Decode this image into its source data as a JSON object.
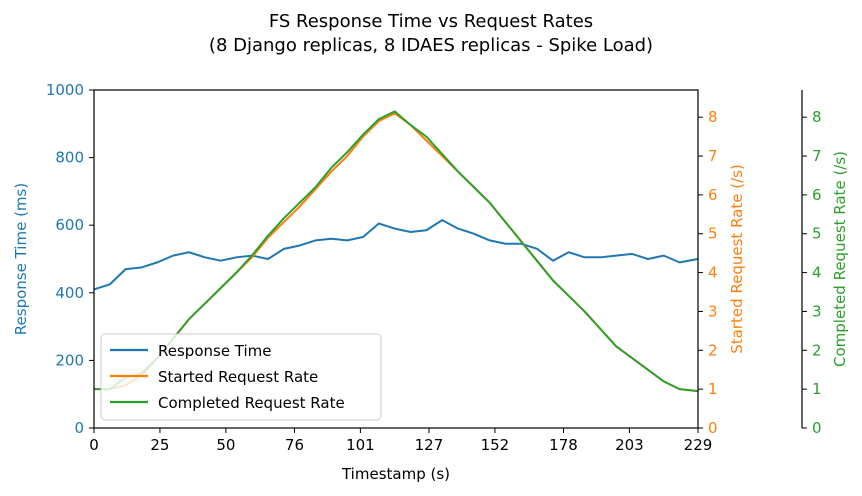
{
  "chart_data": {
    "type": "line",
    "title": "FS Response Time vs Request Rates",
    "subtitle": "(8 Django replicas, 8 IDAES replicas - Spike Load)",
    "xlabel": "Timestamp (s)",
    "xlim": [
      0,
      229
    ],
    "x_ticks": [
      "0",
      "25",
      "50",
      "76",
      "101",
      "127",
      "152",
      "178",
      "203",
      "229"
    ],
    "y_axes": [
      {
        "label": "Response Time (ms)",
        "ylim": [
          0,
          1000
        ],
        "ticks": [
          "0",
          "200",
          "400",
          "600",
          "800",
          "1000"
        ],
        "color": "#1f77b4"
      },
      {
        "label": "Started Request Rate (/s)",
        "ylim": [
          0,
          8.7
        ],
        "ticks": [
          "0",
          "1",
          "2",
          "3",
          "4",
          "5",
          "6",
          "7",
          "8"
        ],
        "color": "#ff7f0e"
      },
      {
        "label": "Completed Request Rate (/s)",
        "ylim": [
          0,
          8.7
        ],
        "ticks": [
          "0",
          "1",
          "2",
          "3",
          "4",
          "5",
          "6",
          "7",
          "8"
        ],
        "color": "#2ca02c"
      }
    ],
    "legend_position": "lower-left",
    "x": [
      0,
      6,
      12,
      18,
      24,
      30,
      36,
      42,
      48,
      54,
      60,
      66,
      72,
      78,
      84,
      90,
      96,
      102,
      108,
      114,
      120,
      126,
      132,
      138,
      144,
      150,
      156,
      162,
      168,
      174,
      180,
      186,
      192,
      198,
      204,
      210,
      216,
      222,
      229
    ],
    "series": [
      {
        "name": "Response Time",
        "color": "#1f77b4",
        "axis": 0,
        "values": [
          410,
          425,
          470,
          475,
          490,
          510,
          520,
          505,
          495,
          505,
          510,
          500,
          530,
          540,
          555,
          560,
          555,
          565,
          605,
          590,
          580,
          585,
          615,
          590,
          575,
          555,
          545,
          545,
          530,
          495,
          520,
          505,
          505,
          510,
          515,
          500,
          510,
          490,
          500
        ]
      },
      {
        "name": "Started Request Rate",
        "color": "#ff7f0e",
        "axis": 1,
        "values": [
          1.0,
          1.0,
          1.1,
          1.35,
          1.8,
          2.3,
          2.8,
          3.2,
          3.6,
          4.0,
          4.4,
          4.9,
          5.3,
          5.7,
          6.15,
          6.6,
          7.0,
          7.5,
          7.9,
          8.1,
          7.8,
          7.4,
          7.0,
          6.6,
          6.2,
          5.8,
          5.3,
          4.8,
          4.3,
          3.8,
          3.4,
          3.0,
          2.55,
          2.1,
          1.8,
          1.5,
          1.2,
          1.0,
          0.95
        ]
      },
      {
        "name": "Completed Request Rate",
        "color": "#2ca02c",
        "axis": 2,
        "values": [
          1.0,
          1.0,
          1.3,
          1.4,
          1.8,
          2.3,
          2.8,
          3.2,
          3.6,
          4.0,
          4.45,
          4.95,
          5.4,
          5.8,
          6.2,
          6.7,
          7.1,
          7.55,
          7.95,
          8.15,
          7.8,
          7.5,
          7.05,
          6.6,
          6.2,
          5.8,
          5.3,
          4.8,
          4.3,
          3.8,
          3.4,
          3.0,
          2.55,
          2.1,
          1.8,
          1.5,
          1.2,
          1.0,
          0.95
        ]
      }
    ]
  }
}
